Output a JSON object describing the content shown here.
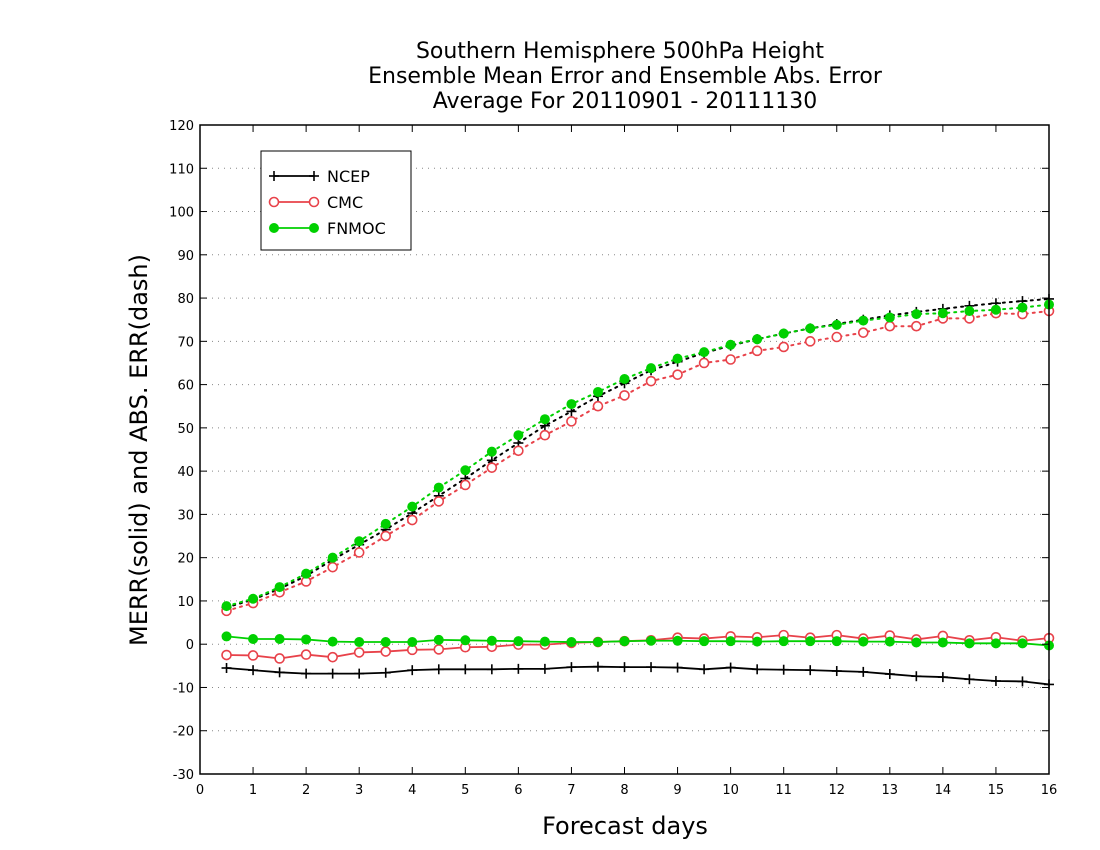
{
  "chart_data": {
    "type": "line",
    "title_lines": [
      "Southern Hemisphere 500hPa Height",
      "Ensemble Mean Error and Ensemble Abs. Error",
      "Average For 20110901 - 20111130"
    ],
    "xlabel": "Forecast days",
    "ylabel": "MERR(solid) and ABS. ERR(dash)",
    "xlim": [
      0,
      16
    ],
    "ylim": [
      -30,
      120
    ],
    "x_ticks": [
      0,
      1,
      2,
      3,
      4,
      5,
      6,
      7,
      8,
      9,
      10,
      11,
      12,
      13,
      14,
      15,
      16
    ],
    "y_ticks": [
      -30,
      -20,
      -10,
      0,
      10,
      20,
      30,
      40,
      50,
      60,
      70,
      80,
      90,
      100,
      110,
      120
    ],
    "grid": "horizontal dotted",
    "legend_position": "top-left",
    "x": [
      0.5,
      1,
      1.5,
      2,
      2.5,
      3,
      3.5,
      4,
      4.5,
      5,
      5.5,
      6,
      6.5,
      7,
      7.5,
      8,
      8.5,
      9,
      9.5,
      10,
      10.5,
      11,
      11.5,
      12,
      12.5,
      13,
      13.5,
      14,
      14.5,
      15,
      15.5,
      16
    ],
    "series": [
      {
        "name": "NCEP",
        "color": "#000000",
        "marker": "plus",
        "merr": [
          -5.5,
          -6.0,
          -6.5,
          -6.8,
          -6.8,
          -6.8,
          -6.6,
          -6.0,
          -5.8,
          -5.8,
          -5.8,
          -5.7,
          -5.7,
          -5.3,
          -5.2,
          -5.3,
          -5.3,
          -5.4,
          -5.8,
          -5.4,
          -5.8,
          -5.9,
          -6.0,
          -6.2,
          -6.4,
          -6.9,
          -7.4,
          -7.6,
          -8.1,
          -8.5,
          -8.6,
          -9.3
        ],
        "abs_err": [
          8.5,
          10.3,
          12.8,
          15.8,
          19.5,
          23.0,
          26.5,
          30.3,
          34.3,
          38.3,
          42.5,
          46.5,
          50.5,
          53.8,
          57.3,
          60.3,
          63.3,
          65.3,
          67.3,
          69.0,
          70.5,
          71.8,
          73.0,
          74.0,
          75.0,
          76.0,
          76.8,
          77.5,
          78.2,
          78.8,
          79.3,
          79.8
        ]
      },
      {
        "name": "CMC",
        "color": "#e8424a",
        "marker": "open-circle",
        "merr": [
          -2.5,
          -2.6,
          -3.3,
          -2.4,
          -3.0,
          -1.9,
          -1.7,
          -1.3,
          -1.2,
          -0.7,
          -0.6,
          -0.1,
          -0.1,
          0.3,
          0.5,
          0.7,
          0.9,
          1.5,
          1.3,
          1.8,
          1.6,
          2.1,
          1.5,
          2.1,
          1.3,
          2.0,
          1.1,
          1.9,
          0.9,
          1.6,
          0.8,
          1.4
        ],
        "abs_err": [
          7.7,
          9.5,
          12.0,
          14.5,
          17.8,
          21.2,
          25.0,
          28.7,
          33.0,
          36.8,
          40.8,
          44.7,
          48.3,
          51.5,
          55.0,
          57.5,
          60.8,
          62.3,
          65.0,
          65.8,
          67.8,
          68.7,
          70.0,
          71.0,
          72.0,
          73.5,
          73.5,
          75.3,
          75.3,
          76.5,
          76.3,
          77.0
        ]
      },
      {
        "name": "FNMOC",
        "color": "#00d000",
        "marker": "filled-circle",
        "merr": [
          1.8,
          1.2,
          1.2,
          1.1,
          0.6,
          0.5,
          0.5,
          0.5,
          1.0,
          0.9,
          0.8,
          0.7,
          0.6,
          0.5,
          0.5,
          0.7,
          0.8,
          0.8,
          0.7,
          0.7,
          0.6,
          0.7,
          0.7,
          0.7,
          0.6,
          0.6,
          0.4,
          0.4,
          0.2,
          0.2,
          0.2,
          -0.3
        ]
      }
    ],
    "fnmoc_abs_err": [
      8.8,
      10.5,
      13.2,
      16.3,
      20.0,
      23.8,
      27.8,
      31.8,
      36.2,
      40.2,
      44.5,
      48.3,
      52.0,
      55.5,
      58.3,
      61.3,
      63.8,
      66.0,
      67.5,
      69.2,
      70.5,
      71.8,
      73.0,
      73.8,
      74.8,
      75.5,
      76.3,
      76.5,
      77.0,
      77.3,
      77.8,
      78.5
    ]
  }
}
